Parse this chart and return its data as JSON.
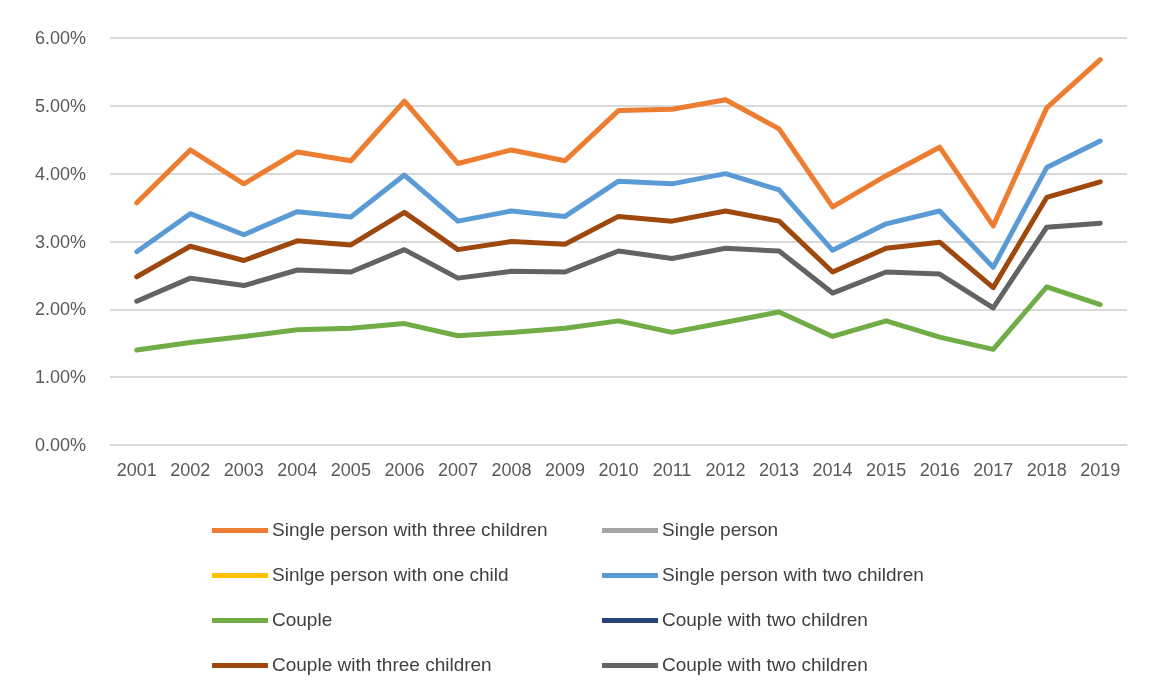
{
  "chart_data": {
    "type": "line",
    "categories": [
      "2001",
      "2002",
      "2003",
      "2004",
      "2005",
      "2006",
      "2007",
      "2008",
      "2009",
      "2010",
      "2011",
      "2012",
      "2013",
      "2014",
      "2015",
      "2016",
      "2017",
      "2018",
      "2019"
    ],
    "series": [
      {
        "name": "Single person with three children",
        "color": "#ed7d31",
        "values": [
          3.57,
          4.35,
          3.85,
          4.32,
          4.19,
          5.07,
          4.15,
          4.35,
          4.19,
          4.93,
          4.95,
          5.09,
          4.66,
          3.51,
          3.97,
          4.39,
          3.23,
          4.97,
          5.68
        ]
      },
      {
        "name": "Single person",
        "color": "#a5a5a5",
        "values": [
          null,
          null,
          null,
          null,
          null,
          null,
          null,
          null,
          null,
          null,
          null,
          null,
          null,
          null,
          null,
          null,
          null,
          null,
          null
        ]
      },
      {
        "name": "Sinlge person with one child",
        "color": "#ffc000",
        "values": [
          null,
          null,
          null,
          null,
          null,
          null,
          null,
          null,
          null,
          null,
          null,
          null,
          null,
          null,
          null,
          null,
          null,
          null,
          null
        ]
      },
      {
        "name": "Single person with two children",
        "color": "#5b9bd5",
        "values": [
          2.85,
          3.41,
          3.1,
          3.44,
          3.36,
          3.98,
          3.3,
          3.45,
          3.37,
          3.89,
          3.85,
          4.0,
          3.76,
          2.87,
          3.26,
          3.45,
          2.62,
          4.09,
          4.48
        ]
      },
      {
        "name": "Couple",
        "color": "#70ad47",
        "values": [
          1.4,
          1.51,
          1.6,
          1.7,
          1.72,
          1.79,
          1.61,
          1.66,
          1.72,
          1.83,
          1.66,
          1.81,
          1.96,
          1.6,
          1.83,
          1.59,
          1.41,
          2.33,
          2.07
        ]
      },
      {
        "name": "Couple with two children",
        "color": "#264478",
        "values": [
          null,
          null,
          null,
          null,
          null,
          null,
          null,
          null,
          null,
          null,
          null,
          null,
          null,
          null,
          null,
          null,
          null,
          null,
          null
        ]
      },
      {
        "name": "Couple with three children",
        "color": "#9e480e",
        "values": [
          2.48,
          2.93,
          2.72,
          3.01,
          2.95,
          3.43,
          2.88,
          3.0,
          2.96,
          3.37,
          3.3,
          3.45,
          3.3,
          2.55,
          2.9,
          2.99,
          2.32,
          3.65,
          3.88
        ]
      },
      {
        "name": "Couple with two children",
        "color": "#636363",
        "values": [
          2.12,
          2.46,
          2.35,
          2.58,
          2.55,
          2.88,
          2.46,
          2.56,
          2.55,
          2.86,
          2.75,
          2.9,
          2.86,
          2.24,
          2.55,
          2.52,
          2.02,
          3.21,
          3.27
        ]
      }
    ],
    "ylim": [
      0,
      6
    ],
    "yticks": [
      {
        "value": 0,
        "label": "0.00%"
      },
      {
        "value": 1,
        "label": "1.00%"
      },
      {
        "value": 2,
        "label": "2.00%"
      },
      {
        "value": 3,
        "label": "3.00%"
      },
      {
        "value": 4,
        "label": "4.00%"
      },
      {
        "value": 5,
        "label": "5.00%"
      },
      {
        "value": 6,
        "label": "6.00%"
      }
    ],
    "grid": "y",
    "legend": "bottom",
    "marker": "none",
    "line_style": "solid"
  }
}
